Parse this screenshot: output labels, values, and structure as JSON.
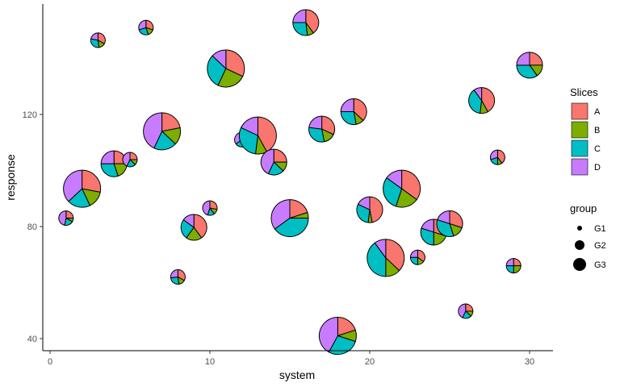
{
  "chart_data": {
    "type": "scatterpie",
    "xlabel": "system",
    "ylabel": "response",
    "xlim": [
      -0.5,
      31.5
    ],
    "ylim": [
      36,
      160
    ],
    "xticks": [
      0,
      10,
      20,
      30
    ],
    "yticks": [
      40,
      80,
      120
    ],
    "grid": false,
    "legend_position": "right",
    "slices": {
      "title": "Slices",
      "names": [
        "A",
        "B",
        "C",
        "D"
      ],
      "colors": [
        "#F8766D",
        "#7CAE00",
        "#00BFC4",
        "#C77CFF"
      ]
    },
    "group_legend": {
      "title": "group",
      "names": [
        "G1",
        "G2",
        "G3"
      ]
    },
    "points": [
      {
        "x": 1,
        "y": 83,
        "group": "G1",
        "A": 0.25,
        "B": 0.08,
        "C": 0.2,
        "D": 0.47
      },
      {
        "x": 2,
        "y": 93.5,
        "group": "G3",
        "A": 0.28,
        "B": 0.15,
        "C": 0.2,
        "D": 0.37
      },
      {
        "x": 3,
        "y": 146.5,
        "group": "G1",
        "A": 0.33,
        "B": 0.15,
        "C": 0.3,
        "D": 0.22
      },
      {
        "x": 4,
        "y": 102.4,
        "group": "G2",
        "A": 0.25,
        "B": 0.2,
        "C": 0.3,
        "D": 0.25
      },
      {
        "x": 5,
        "y": 103.9,
        "group": "G1",
        "A": 0.25,
        "B": 0.12,
        "C": 0.2,
        "D": 0.43
      },
      {
        "x": 6,
        "y": 151,
        "group": "G1",
        "A": 0.3,
        "B": 0.15,
        "C": 0.25,
        "D": 0.3
      },
      {
        "x": 7,
        "y": 114,
        "group": "G3",
        "A": 0.22,
        "B": 0.15,
        "C": 0.2,
        "D": 0.43
      },
      {
        "x": 8,
        "y": 62,
        "group": "G1",
        "A": 0.33,
        "B": 0.15,
        "C": 0.25,
        "D": 0.27
      },
      {
        "x": 9,
        "y": 79.7,
        "group": "G2",
        "A": 0.4,
        "B": 0.2,
        "C": 0.25,
        "D": 0.15
      },
      {
        "x": 10,
        "y": 86.6,
        "group": "G1",
        "A": 0.28,
        "B": 0.12,
        "C": 0.15,
        "D": 0.45
      },
      {
        "x": 11,
        "y": 136.4,
        "group": "G3",
        "A": 0.32,
        "B": 0.25,
        "C": 0.3,
        "D": 0.13
      },
      {
        "x": 12,
        "y": 111,
        "group": "G1",
        "A": 0.3,
        "B": 0.1,
        "C": 0.25,
        "D": 0.35
      },
      {
        "x": 13,
        "y": 112.5,
        "group": "G3",
        "A": 0.42,
        "B": 0.1,
        "C": 0.3,
        "D": 0.18
      },
      {
        "x": 14,
        "y": 103,
        "group": "G2",
        "A": 0.25,
        "B": 0.12,
        "C": 0.2,
        "D": 0.43
      },
      {
        "x": 15,
        "y": 83,
        "group": "G3",
        "A": 0.2,
        "B": 0.05,
        "C": 0.4,
        "D": 0.35
      },
      {
        "x": 16,
        "y": 152.8,
        "group": "G2",
        "A": 0.4,
        "B": 0.08,
        "C": 0.27,
        "D": 0.25
      },
      {
        "x": 17,
        "y": 114.8,
        "group": "G2",
        "A": 0.32,
        "B": 0.15,
        "C": 0.3,
        "D": 0.23
      },
      {
        "x": 18,
        "y": 41,
        "group": "G3",
        "A": 0.2,
        "B": 0.1,
        "C": 0.28,
        "D": 0.42
      },
      {
        "x": 19,
        "y": 121,
        "group": "G2",
        "A": 0.37,
        "B": 0.1,
        "C": 0.28,
        "D": 0.25
      },
      {
        "x": 20,
        "y": 86,
        "group": "G2",
        "A": 0.47,
        "B": 0.05,
        "C": 0.3,
        "D": 0.18
      },
      {
        "x": 21,
        "y": 68.8,
        "group": "G3",
        "A": 0.37,
        "B": 0.13,
        "C": 0.4,
        "D": 0.1
      },
      {
        "x": 22,
        "y": 93.5,
        "group": "G3",
        "A": 0.35,
        "B": 0.2,
        "C": 0.3,
        "D": 0.15
      },
      {
        "x": 23,
        "y": 69,
        "group": "G1",
        "A": 0.35,
        "B": 0.15,
        "C": 0.25,
        "D": 0.25
      },
      {
        "x": 24,
        "y": 78,
        "group": "G2",
        "A": 0.3,
        "B": 0.2,
        "C": 0.3,
        "D": 0.2
      },
      {
        "x": 25,
        "y": 81,
        "group": "G2",
        "A": 0.3,
        "B": 0.15,
        "C": 0.35,
        "D": 0.2
      },
      {
        "x": 26,
        "y": 49.8,
        "group": "G1",
        "A": 0.25,
        "B": 0.12,
        "C": 0.2,
        "D": 0.43
      },
      {
        "x": 27,
        "y": 125,
        "group": "G2",
        "A": 0.42,
        "B": 0.1,
        "C": 0.38,
        "D": 0.1
      },
      {
        "x": 28,
        "y": 104.7,
        "group": "G1",
        "A": 0.4,
        "B": 0.1,
        "C": 0.2,
        "D": 0.3
      },
      {
        "x": 29,
        "y": 66,
        "group": "G1",
        "A": 0.25,
        "B": 0.25,
        "C": 0.25,
        "D": 0.25
      },
      {
        "x": 30,
        "y": 137.6,
        "group": "G2",
        "A": 0.25,
        "B": 0.15,
        "C": 0.35,
        "D": 0.25
      }
    ]
  }
}
